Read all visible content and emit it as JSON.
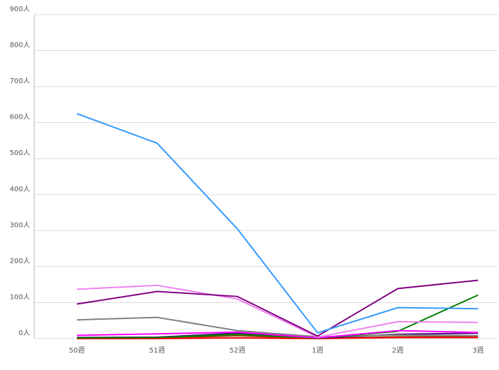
{
  "chart_data": {
    "type": "line",
    "categories": [
      "50週",
      "51週",
      "52週",
      "1週",
      "2週",
      "3週"
    ],
    "series": [
      {
        "color": "#8b4513",
        "values": [
          1,
          1,
          8,
          0,
          5,
          6
        ]
      },
      {
        "color": "#ff0000",
        "values": [
          0,
          0,
          2,
          0,
          3,
          3
        ]
      },
      {
        "color": "#4b0082",
        "values": [
          3,
          4,
          15,
          1,
          12,
          15
        ]
      },
      {
        "color": "#808080",
        "values": [
          52,
          59,
          22,
          5,
          10,
          8
        ]
      },
      {
        "color": "#008000",
        "values": [
          2,
          3,
          12,
          1,
          20,
          121
        ]
      },
      {
        "color": "#ff00ff",
        "values": [
          9,
          13,
          18,
          2,
          22,
          17
        ]
      },
      {
        "color": "#ee82ee",
        "values": [
          137,
          148,
          110,
          4,
          47,
          45
        ]
      },
      {
        "color": "#800080",
        "values": [
          96,
          131,
          117,
          7,
          139,
          162
        ]
      },
      {
        "color": "#3399ff",
        "values": [
          625,
          543,
          305,
          16,
          86,
          83
        ]
      }
    ],
    "ylim": [
      0,
      900
    ],
    "yticks": [
      {
        "value": 0,
        "label": "0人"
      },
      {
        "value": 100,
        "label": "100人"
      },
      {
        "value": 200,
        "label": "200人"
      },
      {
        "value": 300,
        "label": "300人"
      },
      {
        "value": 400,
        "label": "400人"
      },
      {
        "value": 500,
        "label": "500人"
      },
      {
        "value": 600,
        "label": "600人"
      },
      {
        "value": 700,
        "label": "700人"
      },
      {
        "value": 800,
        "label": "800人"
      },
      {
        "value": 900,
        "label": "900人"
      }
    ],
    "grid": true
  }
}
